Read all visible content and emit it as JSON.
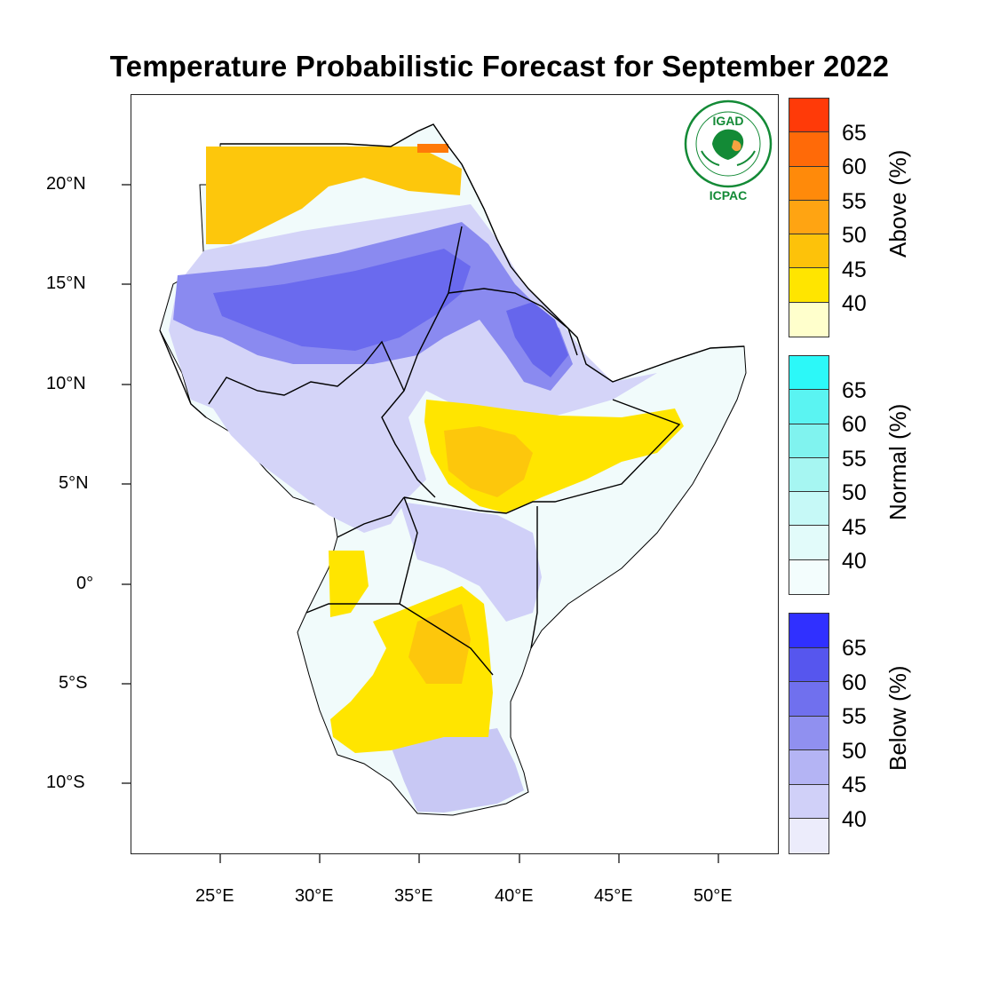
{
  "title": "Temperature Probabilistic Forecast for September 2022",
  "map": {
    "lon_ticks": [
      "25°E",
      "30°E",
      "35°E",
      "40°E",
      "45°E",
      "50°E"
    ],
    "lat_ticks": [
      "20°N",
      "15°N",
      "10°N",
      "5°N",
      "0°",
      "5°S",
      "10°S"
    ]
  },
  "legend": {
    "above": {
      "title": "Above (%)",
      "ticks": [
        "65",
        "60",
        "55",
        "50",
        "45",
        "40"
      ],
      "colors": [
        "#ff3a08",
        "#ff6a08",
        "#ff8a0a",
        "#ffa412",
        "#fdc20a",
        "#ffe500",
        "#ffffcc"
      ]
    },
    "normal": {
      "title": "Normal (%)",
      "ticks": [
        "65",
        "60",
        "55",
        "50",
        "45",
        "40"
      ],
      "colors": [
        "#2cf8f8",
        "#5af4f2",
        "#80f3ef",
        "#a6f6f2",
        "#c6f9f7",
        "#e2fbfa",
        "#f3fdfd"
      ]
    },
    "below": {
      "title": "Below (%)",
      "ticks": [
        "65",
        "60",
        "55",
        "50",
        "45",
        "40"
      ],
      "colors": [
        "#3030ff",
        "#5656ee",
        "#7070ee",
        "#9090f0",
        "#b4b4f4",
        "#d0d0f8",
        "#ececfb"
      ]
    }
  },
  "logo": {
    "acronym": "IGAD",
    "subtitle": "ICPAC",
    "ring_text": "INTERGOVERNMENTAL AUTHORITY ON DEVELOPMENT",
    "colors": {
      "green": "#138a36",
      "orange": "#f4a340"
    }
  }
}
